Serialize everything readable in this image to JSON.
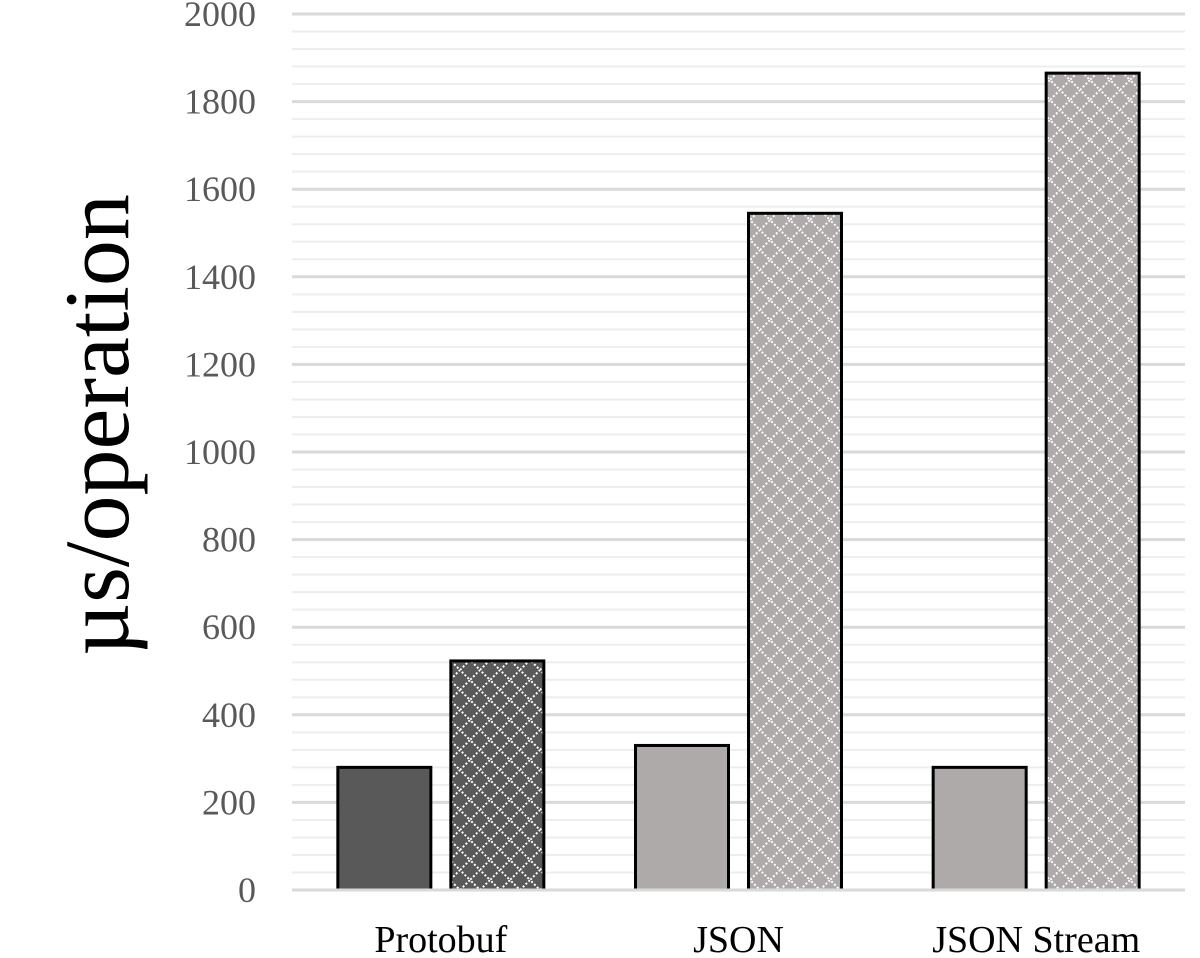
{
  "chart_data": {
    "type": "bar",
    "title": "",
    "xlabel": "",
    "ylabel": "µs/operation",
    "ylim": [
      0,
      2000
    ],
    "y_ticks": [
      0,
      200,
      400,
      600,
      800,
      1000,
      1200,
      1400,
      1600,
      1800,
      2000
    ],
    "y_tick_labels": [
      "0",
      "200",
      "400",
      "600",
      "800",
      "1000",
      "1200",
      "1400",
      "1600",
      "1800",
      "2000"
    ],
    "grid": "horizontal major and minor",
    "legend": "none",
    "categories": [
      "Protobuf",
      "JSON",
      "JSON Stream"
    ],
    "series": [
      {
        "values": [
          280,
          330,
          280
        ],
        "pattern": "solid",
        "colors": [
          "#595959",
          "#aeaaaa",
          "#aeaaaa"
        ]
      },
      {
        "values": [
          523,
          1545,
          1865
        ],
        "pattern": "diamond-crosshatch",
        "colors": [
          "#595959",
          "#aeaaaa",
          "#aeaaaa"
        ]
      }
    ],
    "colors": {
      "dark": "#595959",
      "light": "#aeaaaa",
      "outline": "#000000",
      "grid_major": "#d9d9d9",
      "grid_minor": "#ededed",
      "tick_text": "#595959"
    }
  }
}
